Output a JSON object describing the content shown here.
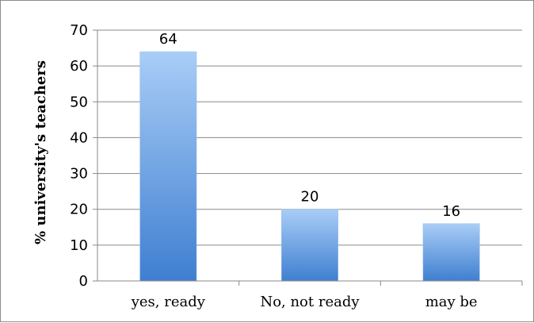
{
  "chart_data": {
    "type": "bar",
    "categories": [
      "yes, ready",
      "No, not ready",
      "may be"
    ],
    "values": [
      64,
      20,
      16
    ],
    "data_labels": [
      "64",
      "20",
      "16"
    ],
    "title": "",
    "xlabel": "",
    "ylabel": "%  university's  teachers",
    "ylim": [
      0,
      70
    ],
    "yticks": [
      0,
      10,
      20,
      30,
      40,
      50,
      60,
      70
    ],
    "grid": true,
    "legend": "none",
    "bar_color_top": "#a9cdf7",
    "bar_color_bottom": "#3f7fd0"
  }
}
